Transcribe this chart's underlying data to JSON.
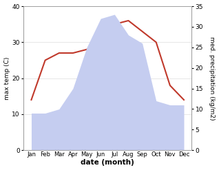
{
  "months": [
    "Jan",
    "Feb",
    "Mar",
    "Apr",
    "May",
    "Jun",
    "Jul",
    "Aug",
    "Sep",
    "Oct",
    "Nov",
    "Dec"
  ],
  "temperature": [
    14,
    25,
    27,
    27,
    28,
    31,
    35,
    36,
    33,
    30,
    18,
    14
  ],
  "precipitation": [
    9,
    9,
    10,
    15,
    25,
    32,
    33,
    28,
    26,
    12,
    11,
    11
  ],
  "temp_color": "#c0392b",
  "precip_fill_color": "#c5cdf0",
  "temp_ylim": [
    0,
    40
  ],
  "precip_ylim": [
    0,
    35
  ],
  "temp_yticks": [
    0,
    10,
    20,
    30,
    40
  ],
  "precip_yticks": [
    0,
    5,
    10,
    15,
    20,
    25,
    30,
    35
  ],
  "xlabel": "date (month)",
  "ylabel_left": "max temp (C)",
  "ylabel_right": "med. precipitation (kg/m2)",
  "figwidth": 3.18,
  "figheight": 2.47,
  "dpi": 100
}
